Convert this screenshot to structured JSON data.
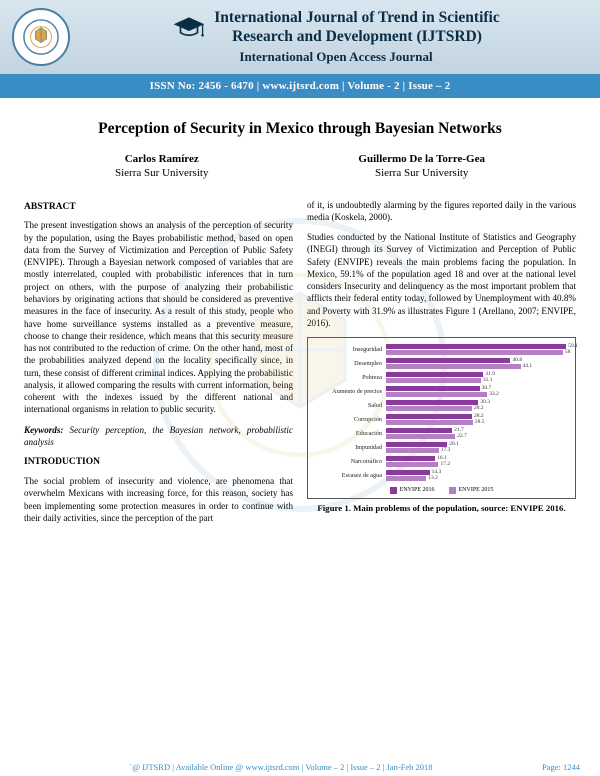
{
  "header": {
    "journal_line1": "International Journal of Trend in Scientific",
    "journal_line2": "Research and Development  (IJTSRD)",
    "subtitle": "International Open Access Journal",
    "strip": "ISSN No: 2456 - 6470   |   www.ijtsrd.com   |   Volume - 2  |  Issue – 2"
  },
  "paper": {
    "title": "Perception of Security in Mexico through Bayesian Networks",
    "authors": [
      {
        "name": "Carlos Ramírez",
        "affil": "Sierra Sur University"
      },
      {
        "name": "Guillermo De la Torre-Gea",
        "affil": "Sierra Sur University"
      }
    ]
  },
  "abstract": {
    "head": "ABSTRACT",
    "text": "The present investigation shows an analysis of the perception of security by the population, using the Bayes probabilistic method, based on open data from the Survey of Victimization and Perception of Public Safety (ENVIPE). Through a Bayesian network composed of variables that are mostly interrelated, coupled with probabilistic inferences that in turn project on others, with the purpose of analyzing their probabilistic behaviors by originating actions that should be considered as preventive measures in the face of insecurity. As a result of this study, people who have home surveillance systems installed as a preventive measure, choose to change their residence, which means that this security measure has not contributed to the reduction of crime. On the other hand, most of the probabilities analyzed depend on the locality specifically since, in turn, these consist of different criminal indices. Applying the probabilistic analysis, it allowed comparing the results with current information, being coherent with the indexes issued by the different national and international organisms in relation to public security."
  },
  "keywords": {
    "label": "Keywords:",
    "text": " Security perception, the Bayesian network, probabilistic analysis"
  },
  "intro": {
    "head": "INTRODUCTION",
    "p1": "The social problem of insecurity and violence, are phenomena that overwhelm Mexicans with increasing force, for this reason, society has been implementing some protection measures in order to continue with their daily activities, since the perception of the part",
    "p1_cont": "of it, is undoubtedly alarming by the figures reported daily in the various media (Koskela, 2000).",
    "p2": "Studies conducted by the National Institute of Statistics and Geography (INEGI) through its Survey of Victimization and Perception of Public Safety (ENVIPE) reveals the main problems facing the population. In Mexico, 59.1% of the population aged 18 and over at the national level considers Insecurity and delinquency as the most important problem that afflicts their federal entity today, followed by Unemployment with 40.8% and Poverty with 31.9% as illustrates Figure 1 (Arellano, 2007; ENVIPE, 2016)."
  },
  "chart": {
    "type": "bar",
    "max": 60,
    "color_2016": "#8a3a9b",
    "color_2015": "#b57fc4",
    "items": [
      {
        "label": "Inseguridad",
        "v2016": 59.1,
        "v2015": 58.0
      },
      {
        "label": "Desempleo",
        "v2016": 40.8,
        "v2015": 44.1
      },
      {
        "label": "Pobreza",
        "v2016": 31.9,
        "v2015": 31.1
      },
      {
        "label": "Aumento de precios",
        "v2016": 30.7,
        "v2015": 33.2
      },
      {
        "label": "Salud",
        "v2016": 30.3,
        "v2015": 28.2
      },
      {
        "label": "Corrupción",
        "v2016": 28.2,
        "v2015": 28.5
      },
      {
        "label": "Educación",
        "v2016": 21.7,
        "v2015": 22.7
      },
      {
        "label": "Impunidad",
        "v2016": 20.1,
        "v2015": 17.3
      },
      {
        "label": "Narcotráfico",
        "v2016": 16.1,
        "v2015": 17.2
      },
      {
        "label": "Escasez de agua",
        "v2016": 14.3,
        "v2015": 13.2
      }
    ],
    "legend_2016": "ENVIPE 2016",
    "legend_2015": "ENVIPE 2015",
    "caption": "Figure 1. Main problems of the population, source: ENVIPE 2016."
  },
  "footer": {
    "line": "`@ IJTSRD  |  Available Online @ www.ijtsrd.com |  Volume – 2  |  Issue – 2  | Jan-Feb 2018",
    "page": "Page: 1244"
  }
}
